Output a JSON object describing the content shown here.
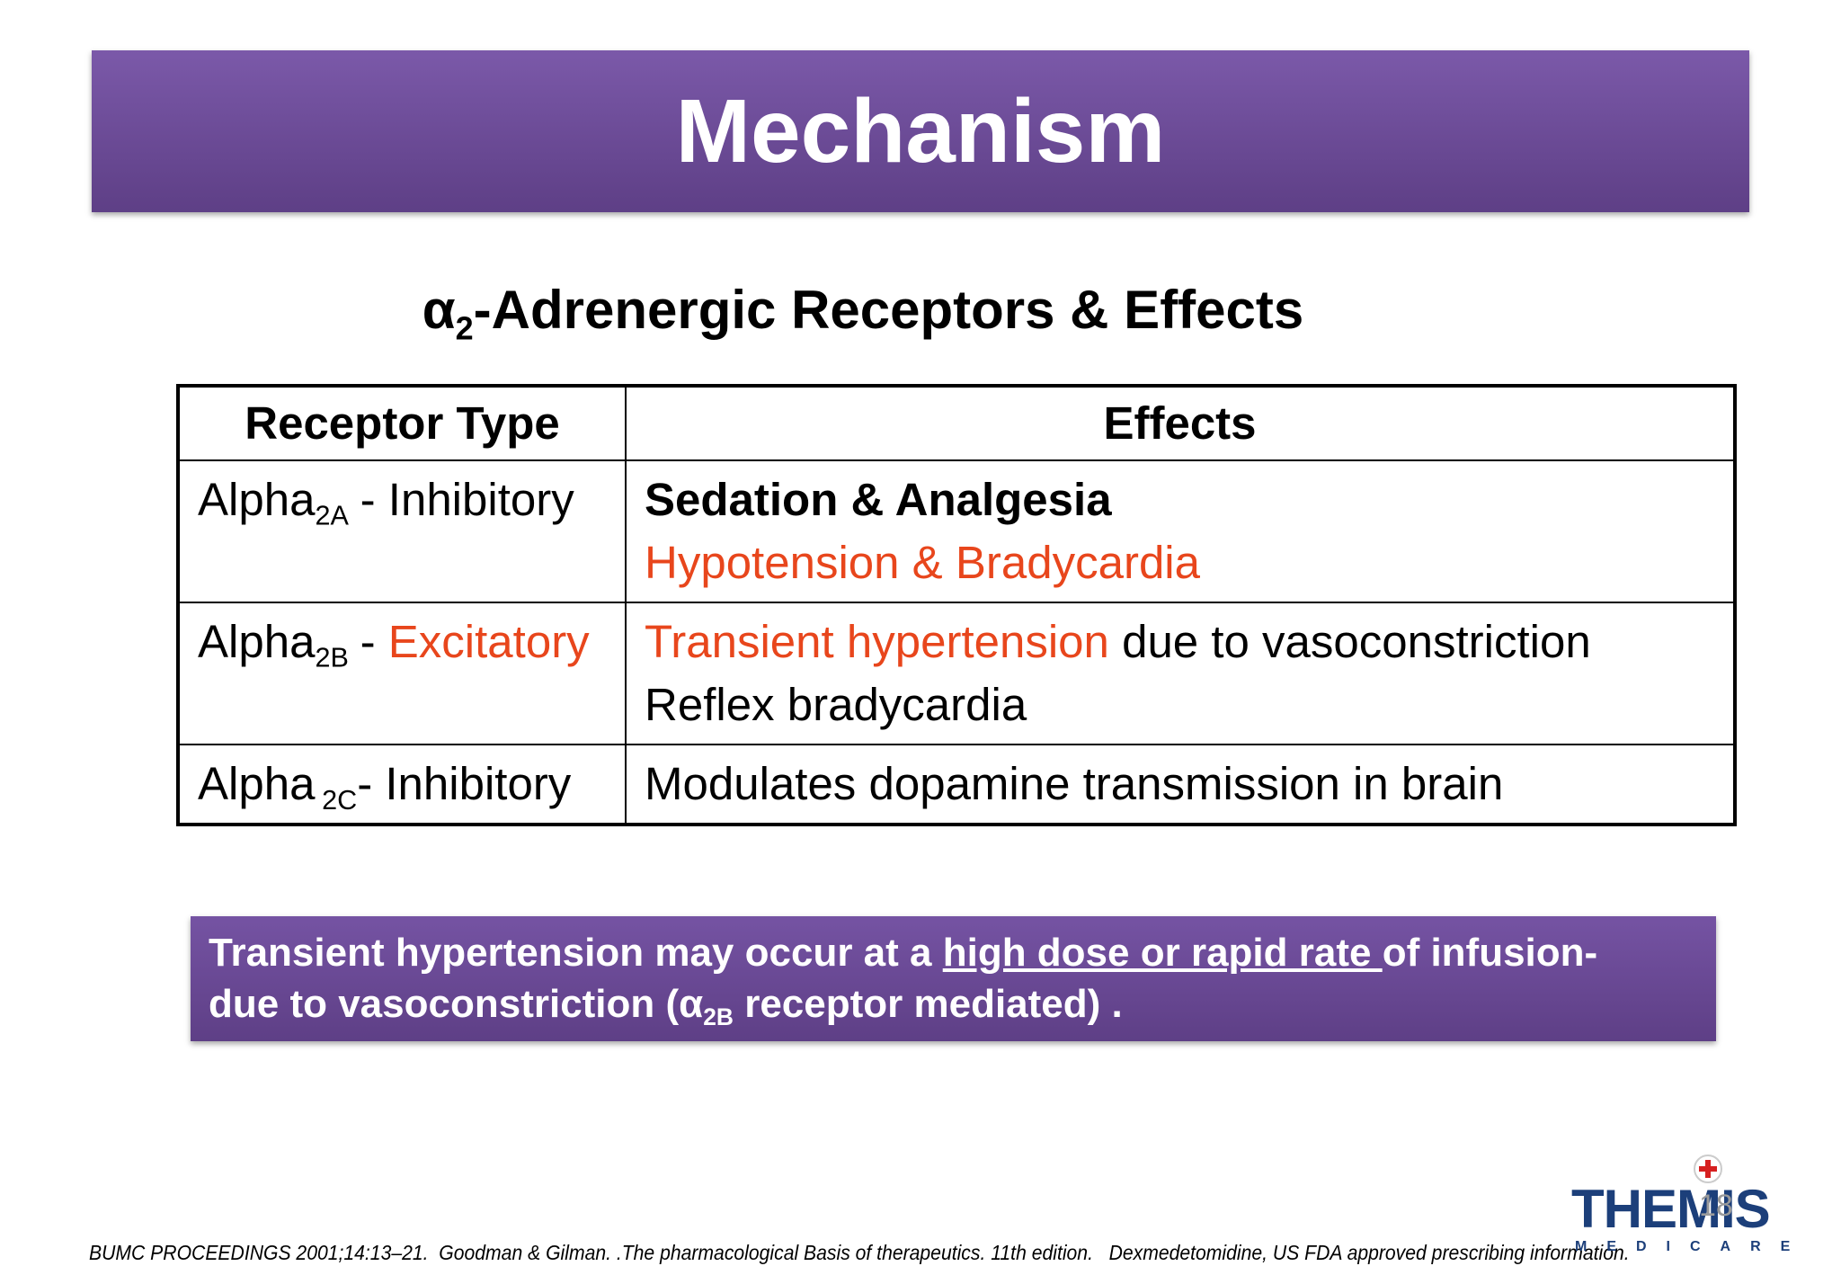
{
  "header": {
    "title": "Mechanism"
  },
  "subtitle": {
    "symbol": "α",
    "subscript": "2",
    "text": "-Adrenergic Receptors & Effects"
  },
  "table": {
    "headers": [
      "Receptor Type",
      "Effects"
    ],
    "rows": [
      {
        "receptor": {
          "name": "Alpha",
          "subscript": "2A",
          "dash": "-",
          "action": "Inhibitory"
        },
        "effects": {
          "line1": "Sedation & Analgesia",
          "line2": "Hypotension & Bradycardia"
        }
      },
      {
        "receptor": {
          "name": "Alpha",
          "subscript": "2B",
          "dash": "-",
          "action": "Excitatory"
        },
        "effects": {
          "line1_highlight": "Transient hypertension",
          "line1_rest": "due to vasoconstriction",
          "line2": "Reflex bradycardia"
        }
      },
      {
        "receptor": {
          "name": "Alpha",
          "subscript": "2C",
          "dash": "-",
          "action": "Inhibitory"
        },
        "effects": {
          "line1": "Modulates dopamine transmission in brain"
        }
      }
    ]
  },
  "callout": {
    "part1": "Transient hypertension may occur at a ",
    "underlined": "high dose or rapid rate ",
    "part2": "of infusion-",
    "part3": "due to vasoconstriction (α",
    "subscript": "2B",
    "part4": " receptor mediated) ."
  },
  "footer": {
    "citation": "BUMC PROCEEDINGS 2001;14:13–21.  Goodman & Gilman. .The pharmacological Basis of therapeutics. 11th edition.   Dexmedetomidine, US FDA approved prescribing information."
  },
  "logo": {
    "brand": "THEMIS",
    "tagline": "MEDICARE"
  },
  "page_number": "18"
}
